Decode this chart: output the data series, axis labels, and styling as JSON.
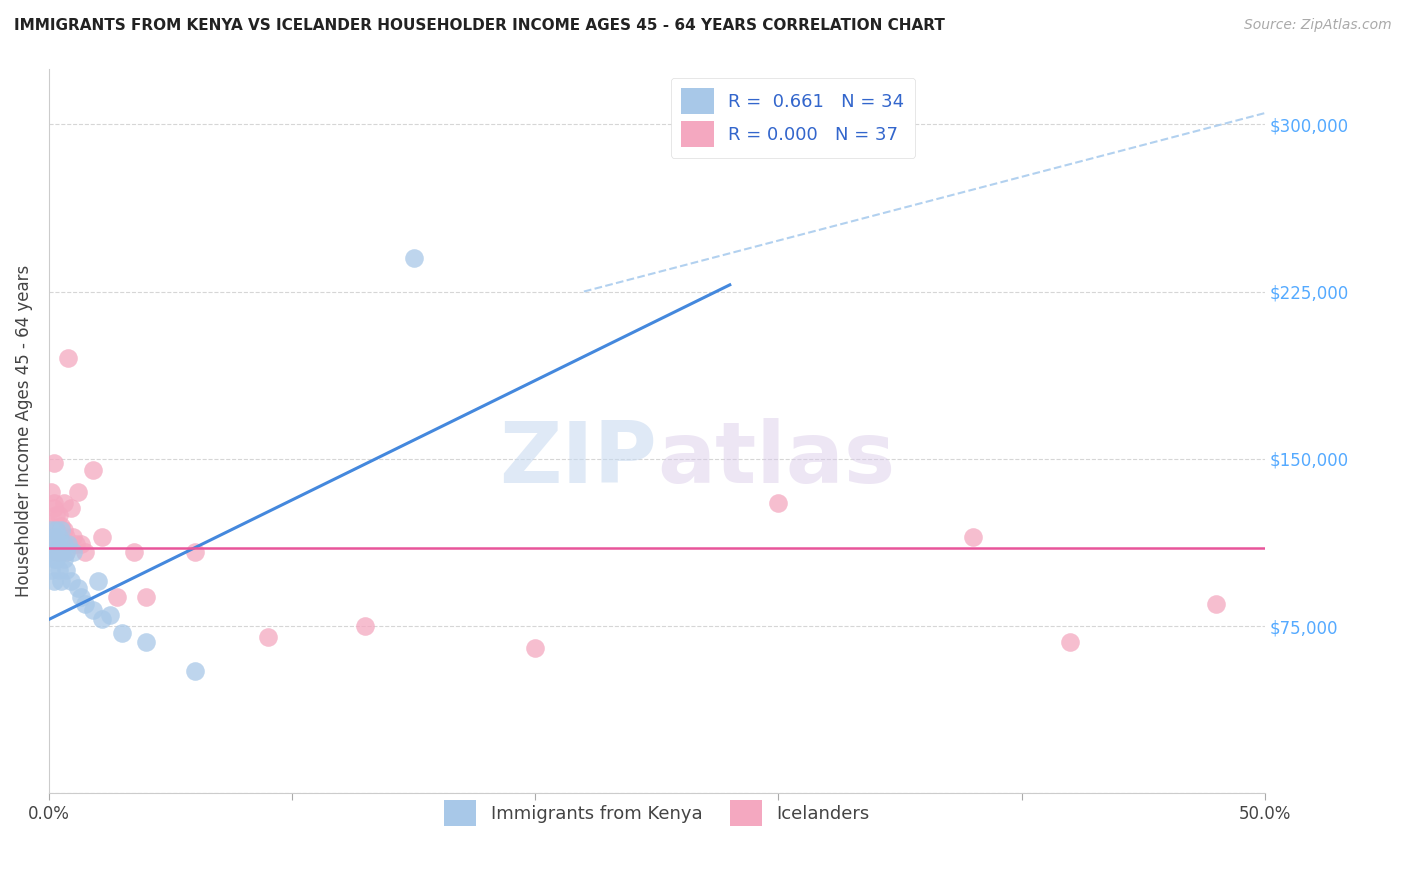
{
  "title": "IMMIGRANTS FROM KENYA VS ICELANDER HOUSEHOLDER INCOME AGES 45 - 64 YEARS CORRELATION CHART",
  "source": "Source: ZipAtlas.com",
  "ylabel": "Householder Income Ages 45 - 64 years",
  "xlim": [
    0.0,
    0.5
  ],
  "ylim": [
    0,
    325000
  ],
  "yticks": [
    0,
    75000,
    150000,
    225000,
    300000
  ],
  "ytick_labels": [
    "",
    "$75,000",
    "$150,000",
    "$225,000",
    "$300,000"
  ],
  "r_kenya": 0.661,
  "n_kenya": 34,
  "r_iceland": 0.0,
  "n_iceland": 37,
  "watermark_zip": "ZIP",
  "watermark_atlas": "atlas",
  "kenya_color": "#a8c8e8",
  "iceland_color": "#f4a8c0",
  "kenya_line_color": "#4488dd",
  "iceland_line_color": "#e8559a",
  "trendline_dash_color": "#aaccee",
  "kenya_scatter_x": [
    0.001,
    0.001,
    0.001,
    0.002,
    0.002,
    0.002,
    0.002,
    0.003,
    0.003,
    0.003,
    0.004,
    0.004,
    0.004,
    0.005,
    0.005,
    0.005,
    0.006,
    0.006,
    0.007,
    0.007,
    0.008,
    0.009,
    0.01,
    0.012,
    0.013,
    0.015,
    0.018,
    0.02,
    0.022,
    0.025,
    0.03,
    0.04,
    0.06,
    0.15
  ],
  "kenya_scatter_y": [
    108000,
    118000,
    100000,
    112000,
    105000,
    95000,
    115000,
    108000,
    118000,
    105000,
    110000,
    100000,
    115000,
    108000,
    118000,
    95000,
    112000,
    105000,
    108000,
    100000,
    112000,
    95000,
    108000,
    92000,
    88000,
    85000,
    82000,
    95000,
    78000,
    80000,
    72000,
    68000,
    55000,
    240000
  ],
  "iceland_scatter_x": [
    0.001,
    0.001,
    0.002,
    0.002,
    0.002,
    0.002,
    0.003,
    0.003,
    0.003,
    0.004,
    0.004,
    0.005,
    0.005,
    0.006,
    0.006,
    0.007,
    0.007,
    0.008,
    0.009,
    0.01,
    0.011,
    0.012,
    0.013,
    0.015,
    0.018,
    0.022,
    0.028,
    0.035,
    0.04,
    0.06,
    0.09,
    0.13,
    0.2,
    0.3,
    0.38,
    0.42,
    0.48
  ],
  "iceland_scatter_y": [
    120000,
    135000,
    130000,
    115000,
    148000,
    128000,
    125000,
    118000,
    108000,
    125000,
    108000,
    120000,
    112000,
    130000,
    118000,
    115000,
    108000,
    195000,
    128000,
    115000,
    112000,
    135000,
    112000,
    108000,
    145000,
    115000,
    88000,
    108000,
    88000,
    108000,
    70000,
    75000,
    65000,
    130000,
    115000,
    68000,
    85000
  ],
  "kenya_trend_x": [
    0.0,
    0.28
  ],
  "kenya_trend_y": [
    78000,
    228000
  ],
  "iceland_trend_y": 110000,
  "dashed_trend_x": [
    0.22,
    0.5
  ],
  "dashed_trend_y": [
    225000,
    305000
  ]
}
